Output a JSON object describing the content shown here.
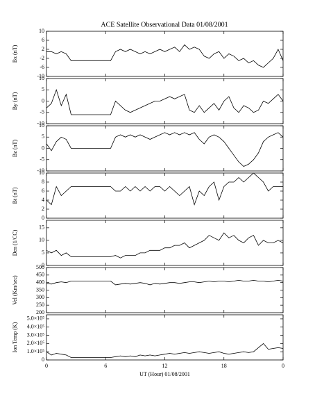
{
  "chart_data": [
    {
      "type": "line",
      "title": "ACE Satellite Observational Data   01/08/2001",
      "ylabel": "Bx (nT)",
      "x": [
        0,
        0.5,
        1,
        1.5,
        2,
        2.5,
        3,
        3.5,
        4,
        4.5,
        5,
        5.5,
        6,
        6.5,
        7,
        7.5,
        8,
        8.5,
        9,
        9.5,
        10,
        10.5,
        11,
        11.5,
        12,
        12.5,
        13,
        13.5,
        14,
        14.5,
        15,
        15.5,
        16,
        16.5,
        17,
        17.5,
        18,
        18.5,
        19,
        19.5,
        20,
        20.5,
        21,
        21.5,
        22,
        22.5,
        23,
        23.5,
        24
      ],
      "values": [
        1,
        1,
        0,
        1,
        0,
        -3,
        -3,
        -3,
        -3,
        -3,
        -3,
        -3,
        -3,
        -3,
        1,
        2,
        1,
        2,
        1,
        0,
        1,
        0,
        1,
        2,
        1,
        2,
        3,
        1,
        4,
        2,
        3,
        2,
        -1,
        -2,
        0,
        1,
        -2,
        0,
        -1,
        -3,
        -2,
        -4,
        -3,
        -5,
        -6,
        -4,
        -2,
        2,
        -3
      ],
      "color": "#000000",
      "ylim": [
        -10,
        10
      ],
      "yticks": [
        -10,
        -6,
        -2,
        2,
        6,
        10
      ]
    },
    {
      "type": "line",
      "ylabel": "By (nT)",
      "x": [
        0,
        0.5,
        1,
        1.5,
        2,
        2.5,
        3,
        3.5,
        4,
        4.5,
        5,
        5.5,
        6,
        6.5,
        7,
        7.5,
        8,
        8.5,
        9,
        9.5,
        10,
        10.5,
        11,
        11.5,
        12,
        12.5,
        13,
        13.5,
        14,
        14.5,
        15,
        15.5,
        16,
        16.5,
        17,
        17.5,
        18,
        18.5,
        19,
        19.5,
        20,
        20.5,
        21,
        21.5,
        22,
        22.5,
        23,
        23.5,
        24
      ],
      "values": [
        -3,
        -1,
        5,
        -2,
        3,
        -6,
        -6,
        -6,
        -6,
        -6,
        -6,
        -6,
        -6,
        -6,
        0,
        -2,
        -4,
        -5,
        -4,
        -3,
        -2,
        -1,
        0,
        0,
        1,
        2,
        1,
        2,
        3,
        -4,
        -5,
        -2,
        -5,
        -3,
        -1,
        -4,
        0,
        2,
        -3,
        -5,
        -2,
        -3,
        -5,
        -4,
        0,
        -1,
        1,
        3,
        0
      ],
      "color": "#000000",
      "ylim": [
        -10,
        10
      ],
      "yticks": [
        -10,
        -5,
        0,
        5,
        10
      ]
    },
    {
      "type": "line",
      "ylabel": "Bz (nT)",
      "x": [
        0,
        0.5,
        1,
        1.5,
        2,
        2.5,
        3,
        3.5,
        4,
        4.5,
        5,
        5.5,
        6,
        6.5,
        7,
        7.5,
        8,
        8.5,
        9,
        9.5,
        10,
        10.5,
        11,
        11.5,
        12,
        12.5,
        13,
        13.5,
        14,
        14.5,
        15,
        15.5,
        16,
        16.5,
        17,
        17.5,
        18,
        18.5,
        19,
        19.5,
        20,
        20.5,
        21,
        21.5,
        22,
        22.5,
        23,
        23.5,
        24
      ],
      "values": [
        2,
        -1,
        3,
        5,
        4,
        0,
        0,
        0,
        0,
        0,
        0,
        0,
        0,
        0,
        5,
        6,
        5,
        6,
        5,
        6,
        5,
        4,
        5,
        6,
        7,
        6,
        7,
        6,
        7,
        6,
        7,
        4,
        2,
        5,
        6,
        5,
        3,
        0,
        -3,
        -6,
        -8,
        -7,
        -5,
        -2,
        3,
        5,
        6,
        7,
        5
      ],
      "color": "#000000",
      "ylim": [
        -10,
        10
      ],
      "yticks": [
        -10,
        -5,
        0,
        5,
        10
      ]
    },
    {
      "type": "line",
      "ylabel": "Bt (nT)",
      "x": [
        0,
        0.5,
        1,
        1.5,
        2,
        2.5,
        3,
        3.5,
        4,
        4.5,
        5,
        5.5,
        6,
        6.5,
        7,
        7.5,
        8,
        8.5,
        9,
        9.5,
        10,
        10.5,
        11,
        11.5,
        12,
        12.5,
        13,
        13.5,
        14,
        14.5,
        15,
        15.5,
        16,
        16.5,
        17,
        17.5,
        18,
        18.5,
        19,
        19.5,
        20,
        20.5,
        21,
        21.5,
        22,
        22.5,
        23,
        23.5,
        24
      ],
      "values": [
        4,
        3,
        7,
        5,
        6,
        7,
        7,
        7,
        7,
        7,
        7,
        7,
        7,
        7,
        6,
        6,
        7,
        6,
        7,
        6,
        7,
        6,
        7,
        7,
        6,
        7,
        6,
        5,
        6,
        7,
        3,
        6,
        5,
        7,
        8,
        4,
        7,
        8,
        8,
        9,
        8,
        9,
        10,
        9,
        8,
        6,
        7,
        7,
        7
      ],
      "color": "#000000",
      "ylim": [
        0,
        10
      ],
      "yticks": [
        0,
        2,
        4,
        6,
        8,
        10
      ]
    },
    {
      "type": "line",
      "ylabel": "Den (1/CC)",
      "x": [
        0,
        0.5,
        1,
        1.5,
        2,
        2.5,
        3,
        3.5,
        4,
        4.5,
        5,
        5.5,
        6,
        6.5,
        7,
        7.5,
        8,
        8.5,
        9,
        9.5,
        10,
        10.5,
        11,
        11.5,
        12,
        12.5,
        13,
        13.5,
        14,
        14.5,
        15,
        15.5,
        16,
        16.5,
        17,
        17.5,
        18,
        18.5,
        19,
        19.5,
        20,
        20.5,
        21,
        21.5,
        22,
        22.5,
        23,
        23.5,
        24
      ],
      "values": [
        6,
        5,
        6,
        4,
        5,
        3.5,
        3.5,
        3.5,
        3.5,
        3.5,
        3.5,
        3.5,
        3.5,
        3.5,
        4,
        3,
        4,
        4,
        4,
        5,
        5,
        6,
        6,
        6,
        7,
        7,
        8,
        8,
        9,
        7,
        8,
        9,
        10,
        12,
        11,
        10,
        13,
        11,
        12,
        10,
        9,
        11,
        12,
        8,
        10,
        9,
        9,
        10,
        9
      ],
      "color": "#000000",
      "ylim": [
        0,
        18
      ],
      "yticks": [
        0,
        5,
        10,
        15
      ]
    },
    {
      "type": "line",
      "ylabel": "Vel (Km/sec)",
      "x": [
        0,
        0.5,
        1,
        1.5,
        2,
        2.5,
        3,
        3.5,
        4,
        4.5,
        5,
        5.5,
        6,
        6.5,
        7,
        7.5,
        8,
        8.5,
        9,
        9.5,
        10,
        10.5,
        11,
        11.5,
        12,
        12.5,
        13,
        13.5,
        14,
        14.5,
        15,
        15.5,
        16,
        16.5,
        17,
        17.5,
        18,
        18.5,
        19,
        19.5,
        20,
        20.5,
        21,
        21.5,
        22,
        22.5,
        23,
        23.5,
        24
      ],
      "values": [
        395,
        390,
        400,
        405,
        400,
        410,
        410,
        410,
        410,
        410,
        410,
        410,
        410,
        410,
        385,
        390,
        395,
        390,
        395,
        400,
        395,
        385,
        395,
        390,
        395,
        400,
        400,
        395,
        400,
        405,
        405,
        400,
        405,
        410,
        405,
        410,
        410,
        405,
        410,
        415,
        410,
        410,
        415,
        410,
        410,
        405,
        410,
        415,
        410
      ],
      "color": "#000000",
      "ylim": [
        200,
        500
      ],
      "yticks": [
        200,
        250,
        300,
        350,
        400,
        450,
        500
      ]
    },
    {
      "type": "line",
      "ylabel": "Ion Temp (K)",
      "xlabel": "UT (Hour)  01/08/2001",
      "x": [
        0,
        0.5,
        1,
        1.5,
        2,
        2.5,
        3,
        3.5,
        4,
        4.5,
        5,
        5.5,
        6,
        6.5,
        7,
        7.5,
        8,
        8.5,
        9,
        9.5,
        10,
        10.5,
        11,
        11.5,
        12,
        12.5,
        13,
        13.5,
        14,
        14.5,
        15,
        15.5,
        16,
        16.5,
        17,
        17.5,
        18,
        18.5,
        19,
        19.5,
        20,
        20.5,
        21,
        21.5,
        22,
        22.5,
        23,
        23.5,
        24
      ],
      "values": [
        100000,
        60000,
        80000,
        70000,
        60000,
        30000,
        30000,
        30000,
        30000,
        30000,
        30000,
        30000,
        30000,
        30000,
        40000,
        50000,
        40000,
        50000,
        40000,
        60000,
        50000,
        60000,
        50000,
        60000,
        70000,
        80000,
        70000,
        80000,
        90000,
        80000,
        90000,
        100000,
        90000,
        80000,
        90000,
        100000,
        80000,
        70000,
        80000,
        90000,
        100000,
        90000,
        100000,
        150000,
        200000,
        130000,
        140000,
        150000,
        140000
      ],
      "color": "#000000",
      "ylim": [
        0,
        550000
      ],
      "yticks": [
        0,
        {
          "value": 100000,
          "label": "1.0×10⁵"
        },
        {
          "value": 200000,
          "label": "2.0×10⁵"
        },
        {
          "value": 300000,
          "label": "3.0×10⁵"
        },
        {
          "value": 400000,
          "label": "4.0×10⁵"
        },
        {
          "value": 500000,
          "label": "5.0×10⁵"
        }
      ],
      "xlim": [
        0,
        24
      ],
      "xticks": [
        0,
        6,
        12,
        18,
        {
          "value": 24,
          "label": "0"
        }
      ]
    }
  ]
}
